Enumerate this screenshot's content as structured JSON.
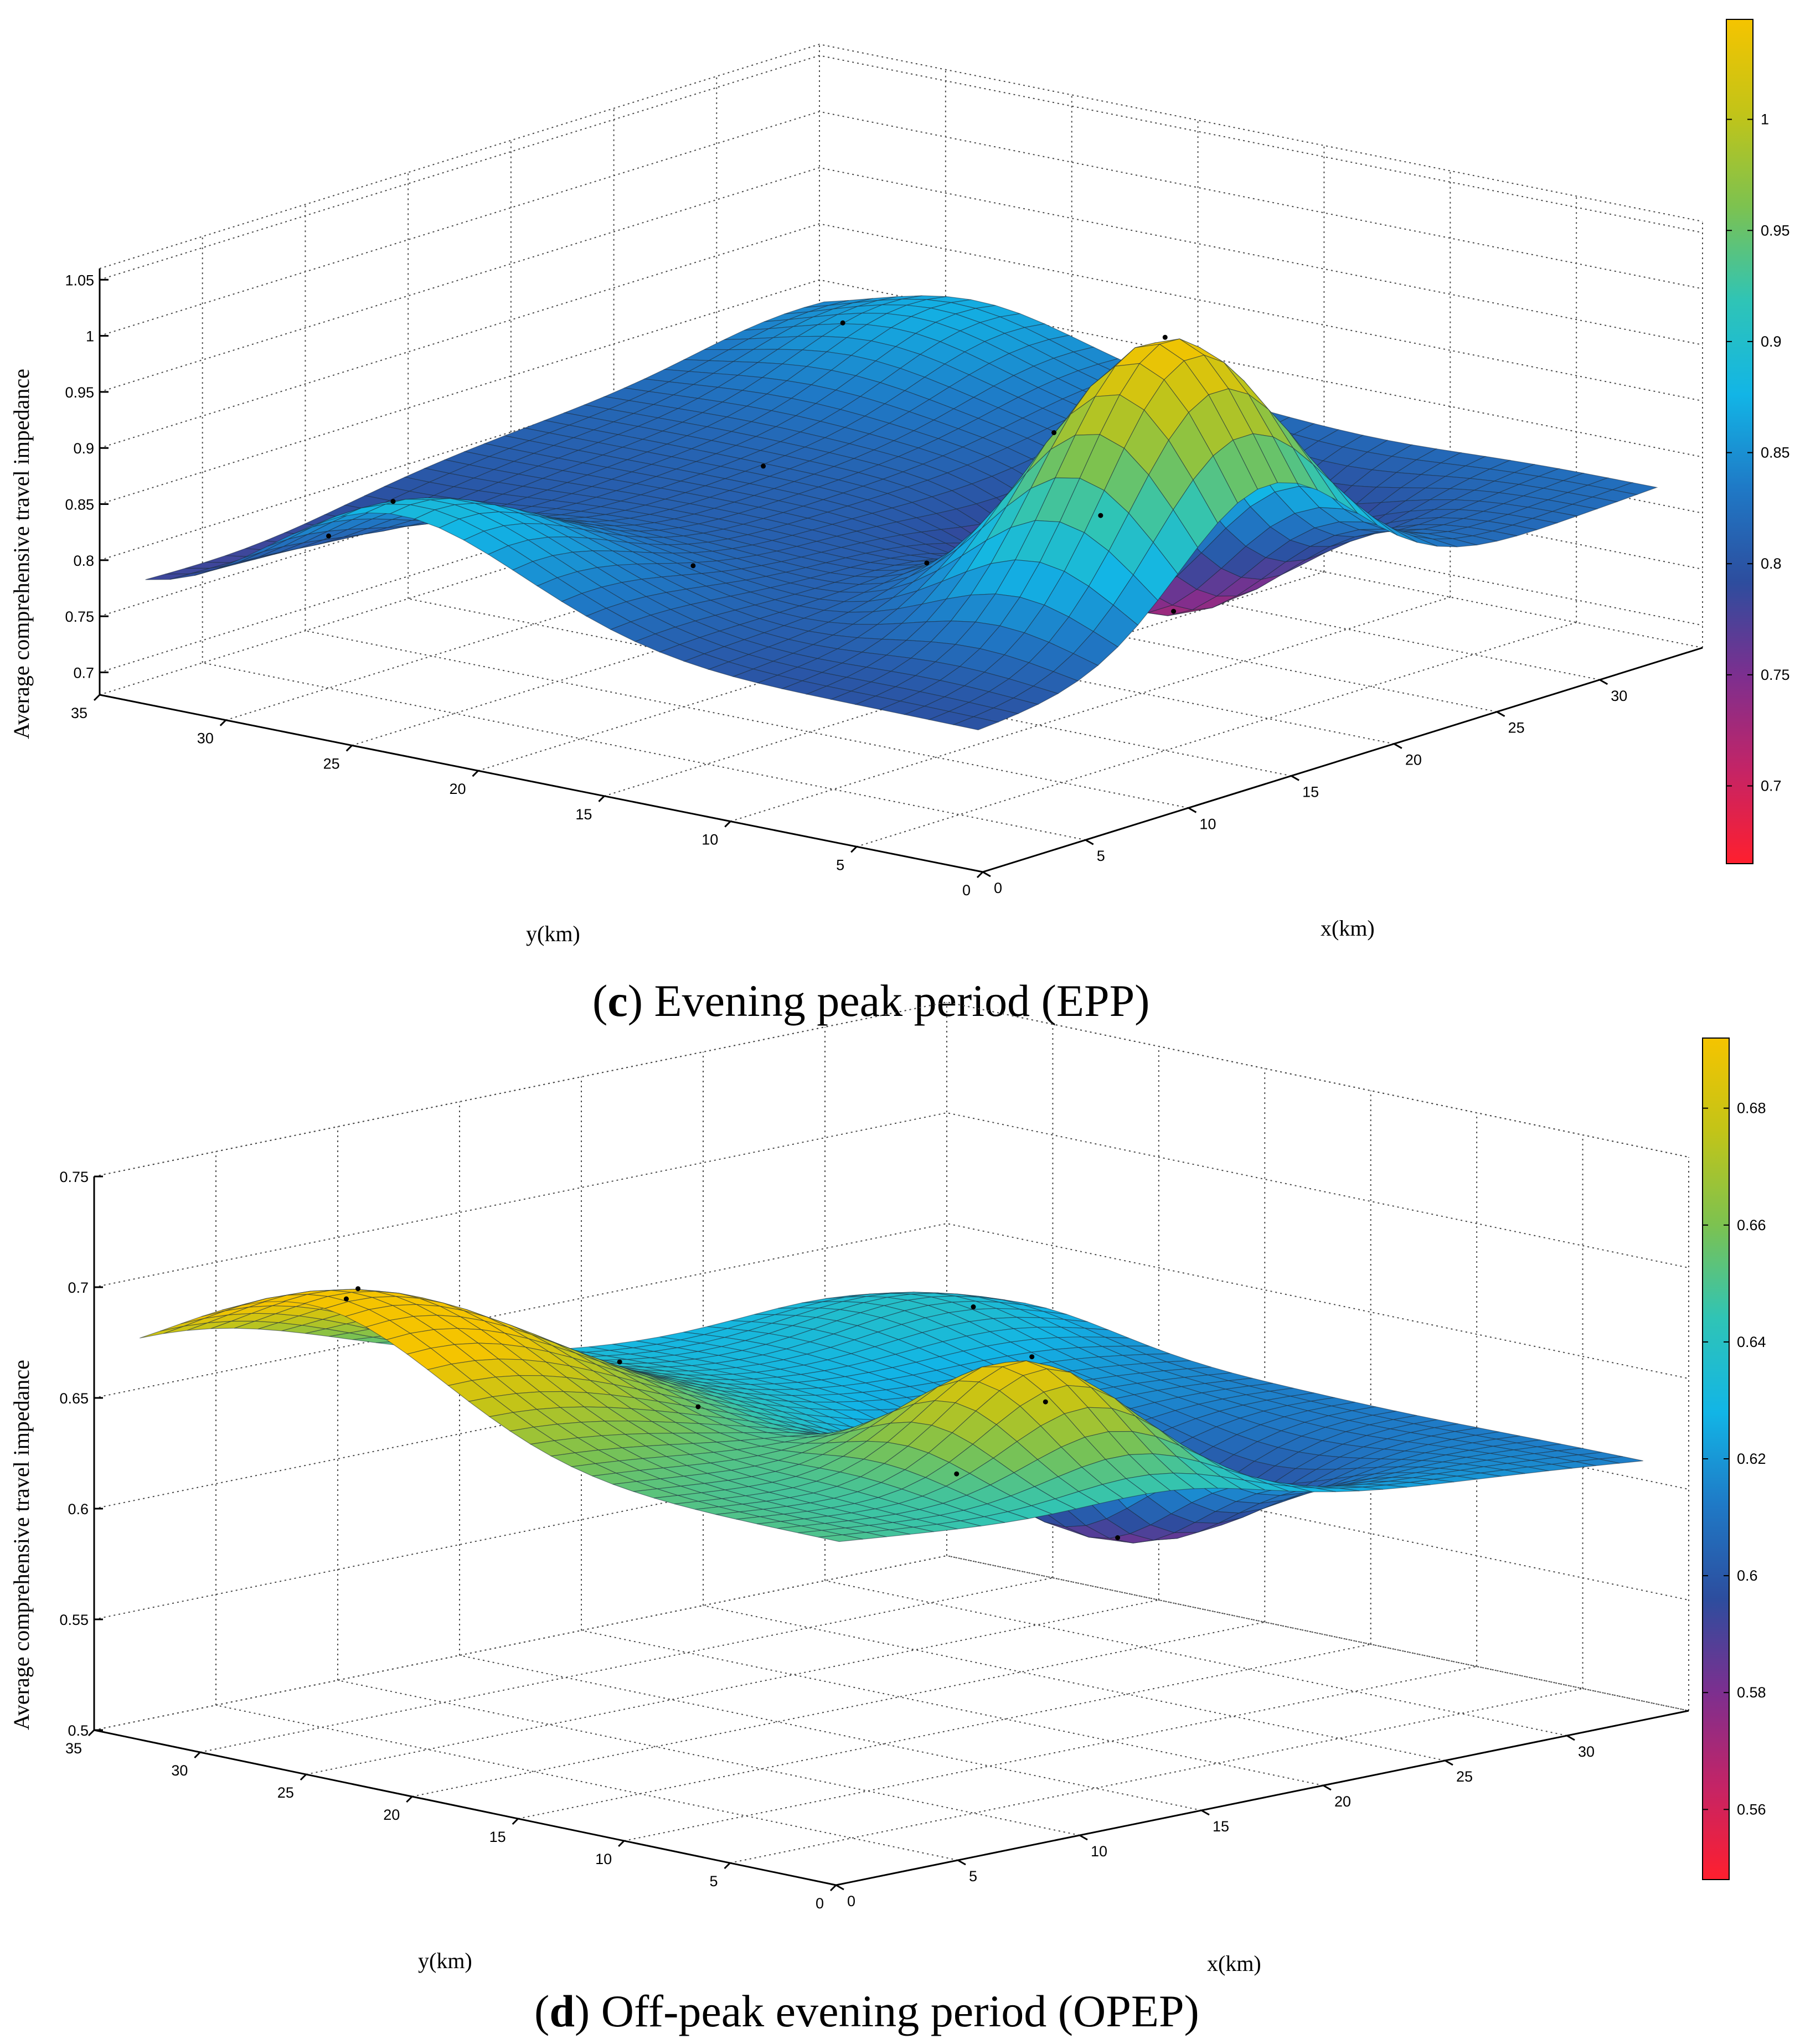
{
  "chart_data": [
    {
      "type": "surface3d",
      "panel": "c",
      "caption_letter": "c",
      "caption_text": " Evening peak period (EPP)",
      "zlabel": "Average comprehensive travel impedance",
      "xlabel": "x(km)",
      "ylabel": "y(km)",
      "x_ticks": [
        "0",
        "5",
        "10",
        "15",
        "20",
        "25",
        "30"
      ],
      "y_ticks": [
        "35",
        "30",
        "25",
        "20",
        "15",
        "10",
        "5",
        "0"
      ],
      "z_ticks": [
        "0.7",
        "0.75",
        "0.8",
        "0.85",
        "0.9",
        "0.95",
        "1",
        "1.05"
      ],
      "zlim": [
        0.68,
        1.06
      ],
      "colorbar_ticks": [
        "0.7",
        "0.75",
        "0.8",
        "0.85",
        "0.9",
        "0.95",
        "1"
      ],
      "colorbar_range": [
        0.665,
        1.045
      ],
      "colormap": [
        "#ff1f2e",
        "#c42466",
        "#7d2f8f",
        "#2d4d9e",
        "#1f79c6",
        "#12b5e6",
        "#2fc4b6",
        "#7cc250",
        "#c2c418",
        "#f5c400"
      ],
      "surface": {
        "base": 0.81,
        "tilt": 0.03,
        "bumps": [
          {
            "x": 15,
            "y": 5,
            "sx": 6,
            "sy": 5,
            "a": 0.24
          },
          {
            "x": 2,
            "y": 25,
            "sx": 7,
            "sy": 8,
            "a": 0.1
          },
          {
            "x": 24,
            "y": 12,
            "sx": 6,
            "sy": 5,
            "a": -0.1
          },
          {
            "x": 3,
            "y": 32,
            "sx": 8,
            "sy": 6,
            "a": -0.05
          },
          {
            "x": 32,
            "y": 28,
            "sx": 6,
            "sy": 6,
            "a": 0.05
          }
        ]
      },
      "sample_points": [
        {
          "x": 15,
          "y": 5
        },
        {
          "x": 2,
          "y": 25
        },
        {
          "x": 24,
          "y": 12
        },
        {
          "x": 8,
          "y": 18
        },
        {
          "x": 18,
          "y": 10
        },
        {
          "x": 28,
          "y": 20
        },
        {
          "x": 12,
          "y": 12
        },
        {
          "x": 5,
          "y": 30
        },
        {
          "x": 30,
          "y": 30
        },
        {
          "x": 20,
          "y": 25
        }
      ]
    },
    {
      "type": "surface3d",
      "panel": "d",
      "caption_letter": "d",
      "caption_text": " Off-peak evening period (OPEP)",
      "zlabel": "Average comprehensive travel impedance",
      "xlabel": "x(km)",
      "ylabel": "y(km)",
      "x_ticks": [
        "0",
        "5",
        "10",
        "15",
        "20",
        "25",
        "30"
      ],
      "y_ticks": [
        "35",
        "30",
        "25",
        "20",
        "15",
        "10",
        "5",
        "0"
      ],
      "z_ticks": [
        "0.5",
        "0.55",
        "0.6",
        "0.65",
        "0.7",
        "0.75"
      ],
      "zlim": [
        0.5,
        0.75
      ],
      "colorbar_ticks": [
        "0.56",
        "0.58",
        "0.6",
        "0.62",
        "0.64",
        "0.66",
        "0.68"
      ],
      "colorbar_range": [
        0.548,
        0.692
      ],
      "colormap": [
        "#ff1f2e",
        "#c42466",
        "#7d2f8f",
        "#2d4d9e",
        "#1f79c6",
        "#12b5e6",
        "#2fc4b6",
        "#7cc250",
        "#c2c418",
        "#f5c400"
      ],
      "surface": {
        "base": 0.632,
        "tilt": -0.04,
        "bumps": [
          {
            "x": 3,
            "y": 26,
            "sx": 9,
            "sy": 9,
            "a": 0.06
          },
          {
            "x": 15,
            "y": 8,
            "sx": 5,
            "sy": 5,
            "a": 0.06
          },
          {
            "x": 22,
            "y": 12,
            "sx": 6,
            "sy": 6,
            "a": -0.05
          },
          {
            "x": 30,
            "y": 30,
            "sx": 6,
            "sy": 6,
            "a": 0.02
          }
        ]
      },
      "sample_points": [
        {
          "x": 3,
          "y": 26
        },
        {
          "x": 15,
          "y": 8
        },
        {
          "x": 22,
          "y": 12
        },
        {
          "x": 10,
          "y": 18
        },
        {
          "x": 6,
          "y": 30
        },
        {
          "x": 18,
          "y": 15
        },
        {
          "x": 26,
          "y": 20
        },
        {
          "x": 30,
          "y": 28
        },
        {
          "x": 12,
          "y": 24
        }
      ]
    }
  ]
}
